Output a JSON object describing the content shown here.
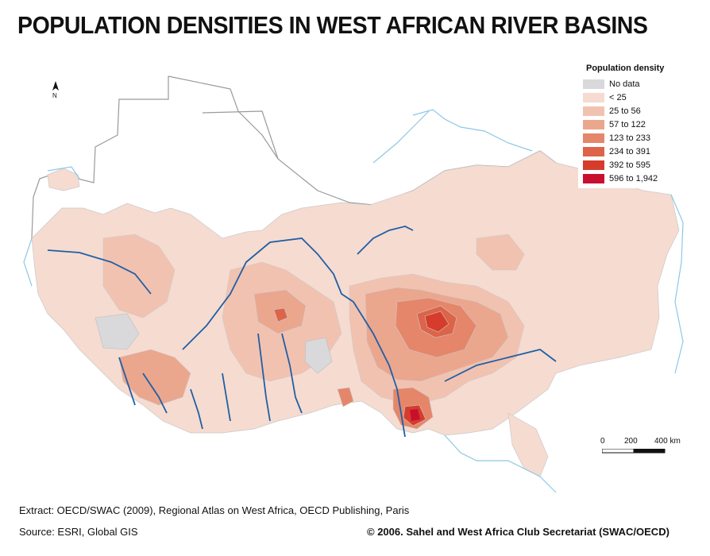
{
  "title": "POPULATION DENSITIES IN WEST AFRICAN RIVER BASINS",
  "legend": {
    "title": "Population density",
    "items": [
      {
        "label": "No data",
        "color": "#d9d9dc"
      },
      {
        "label": "< 25",
        "color": "#f6dbd0"
      },
      {
        "label": "25 to 56",
        "color": "#f2c2b0"
      },
      {
        "label": "57 to 122",
        "color": "#eba68e"
      },
      {
        "label": "123 to 233",
        "color": "#e5866a"
      },
      {
        "label": "234 to 391",
        "color": "#dd6448"
      },
      {
        "label": "392 to 595",
        "color": "#d63c2c"
      },
      {
        "label": "596 to 1,942",
        "color": "#c8102e"
      }
    ]
  },
  "colors": {
    "river": "#8ec7e6",
    "river_major": "#1f5fa6",
    "border": "#9a9a9a"
  },
  "north_arrow": {
    "label": "N"
  },
  "scale": {
    "labels": [
      "0",
      "200",
      "400 km"
    ]
  },
  "footer": {
    "extract": "Extract: OECD/SWAC (2009), Regional Atlas on West Africa, OECD Publishing, Paris",
    "source": "Source: ESRI, Global GIS",
    "copyright": "© 2006. Sahel and West Africa Club Secretariat (SWAC/OECD)"
  }
}
